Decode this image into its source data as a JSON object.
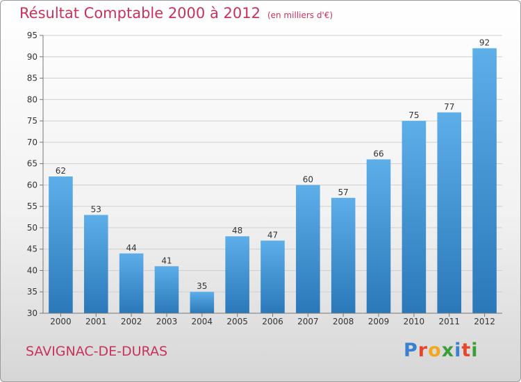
{
  "header": {
    "title": "Résultat Comptable 2000 à 2012",
    "subtitle": "(en milliers d'€)"
  },
  "footer": {
    "commune": "SAVIGNAC-DE-DURAS",
    "logo_letters": [
      "P",
      "r",
      "o",
      "x",
      "i",
      "t",
      "i"
    ],
    "logo_colors": [
      "#3a7fd0",
      "#e8452c",
      "#f4a71d",
      "#3a9e3a",
      "#3a7fd0",
      "#e8452c",
      "#3a9e3a"
    ]
  },
  "chart_data": {
    "type": "bar",
    "title": "Résultat Comptable 2000 à 2012",
    "subtitle": "(en milliers d'€)",
    "categories": [
      "2000",
      "2001",
      "2002",
      "2003",
      "2004",
      "2005",
      "2006",
      "2007",
      "2008",
      "2009",
      "2010",
      "2011",
      "2012"
    ],
    "values": [
      62,
      53,
      44,
      41,
      35,
      48,
      47,
      60,
      57,
      66,
      75,
      77,
      92
    ],
    "ylim": [
      30,
      95
    ],
    "yticks": [
      30,
      35,
      40,
      45,
      50,
      55,
      60,
      65,
      70,
      75,
      80,
      85,
      90,
      95
    ],
    "grid": true,
    "colors": {
      "bar_top": "#5eaeea",
      "bar_bottom": "#2a78b8",
      "grid": "#cfcfcf",
      "axis": "#777777",
      "accent": "#c8325a"
    }
  }
}
